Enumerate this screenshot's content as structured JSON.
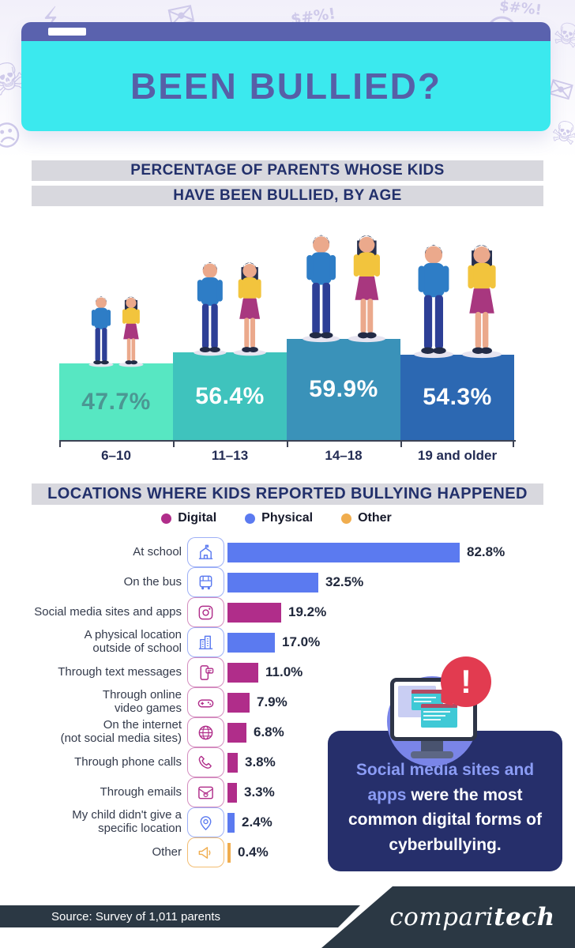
{
  "header": {
    "title": "BEEN BULLIED?"
  },
  "background": {
    "doodles": [
      {
        "glyph": "⚡"
      },
      {
        "glyph": "✉"
      },
      {
        "glyph": "$#%!"
      },
      {
        "glyph": "☹"
      },
      {
        "glyph": "$#%!"
      },
      {
        "glyph": "☠"
      },
      {
        "glyph": "☠"
      },
      {
        "glyph": "✉"
      },
      {
        "glyph": "☹"
      },
      {
        "glyph": "☠"
      }
    ]
  },
  "age_section": {
    "title_line1": "PERCENTAGE OF PARENTS WHOSE KIDS",
    "title_line2": "HAVE BEEN BULLIED, BY AGE"
  },
  "locations_section": {
    "title": "LOCATIONS WHERE KIDS REPORTED BULLYING HAPPENED"
  },
  "colors": {
    "digital": "#b02d8a",
    "physical": "#5b7af0",
    "other": "#f0ad4e",
    "age_bar_colors": [
      "#57e7c2",
      "#3fc3bd",
      "#3a92b9",
      "#2c68b2"
    ]
  },
  "chart_data": [
    {
      "type": "bar",
      "orientation": "vertical",
      "title": "Percentage of parents whose kids have been bullied, by age",
      "categories": [
        "6–10",
        "11–13",
        "14–18",
        "19 and older"
      ],
      "values": [
        47.7,
        56.4,
        59.9,
        54.3
      ],
      "value_labels": [
        "47.7%",
        "56.4%",
        "59.9%",
        "54.3%"
      ],
      "bar_colors": [
        "#57e7c2",
        "#3fc3bd",
        "#3a92b9",
        "#2c68b2"
      ],
      "ylim": [
        0,
        100
      ],
      "grid": false
    },
    {
      "type": "bar",
      "orientation": "horizontal",
      "title": "Locations where kids reported bullying happened",
      "max_value": 82.8,
      "legend": [
        {
          "label": "Digital",
          "category": "digital"
        },
        {
          "label": "Physical",
          "category": "physical"
        },
        {
          "label": "Other",
          "category": "other"
        }
      ],
      "rows": [
        {
          "lines": [
            "At school"
          ],
          "icon": "school-icon",
          "category": "physical",
          "value": 82.8,
          "value_label": "82.8%"
        },
        {
          "lines": [
            "On the bus"
          ],
          "icon": "bus-icon",
          "category": "physical",
          "value": 32.5,
          "value_label": "32.5%"
        },
        {
          "lines": [
            "Social media sites and apps"
          ],
          "icon": "social-media-icon",
          "category": "digital",
          "value": 19.2,
          "value_label": "19.2%"
        },
        {
          "lines": [
            "A physical location",
            "outside of school"
          ],
          "icon": "city-buildings-icon",
          "category": "physical",
          "value": 17.0,
          "value_label": "17.0%"
        },
        {
          "lines": [
            "Through text messages"
          ],
          "icon": "text-message-icon",
          "category": "digital",
          "value": 11.0,
          "value_label": "11.0%"
        },
        {
          "lines": [
            "Through online",
            "video games"
          ],
          "icon": "gamepad-icon",
          "category": "digital",
          "value": 7.9,
          "value_label": "7.9%"
        },
        {
          "lines": [
            "On the internet",
            "(not social media sites)"
          ],
          "icon": "globe-icon",
          "category": "digital",
          "value": 6.8,
          "value_label": "6.8%"
        },
        {
          "lines": [
            "Through phone calls"
          ],
          "icon": "phone-icon",
          "category": "digital",
          "value": 3.8,
          "value_label": "3.8%"
        },
        {
          "lines": [
            "Through emails"
          ],
          "icon": "email-skull-icon",
          "category": "digital",
          "value": 3.3,
          "value_label": "3.3%"
        },
        {
          "lines": [
            "My child didn't give a",
            "specific location"
          ],
          "icon": "map-pin-icon",
          "category": "physical",
          "value": 2.4,
          "value_label": "2.4%"
        },
        {
          "lines": [
            "Other"
          ],
          "icon": "megaphone-icon",
          "category": "other",
          "value": 0.4,
          "value_label": "0.4%"
        }
      ]
    }
  ],
  "callout": {
    "highlight": "Social media sites and apps",
    "rest": " were the most common digital forms of cyberbullying.",
    "alert_glyph": "!"
  },
  "footer": {
    "source": "Source: Survey of 1,011 parents",
    "brand_left": "compari",
    "brand_right": "tech"
  }
}
